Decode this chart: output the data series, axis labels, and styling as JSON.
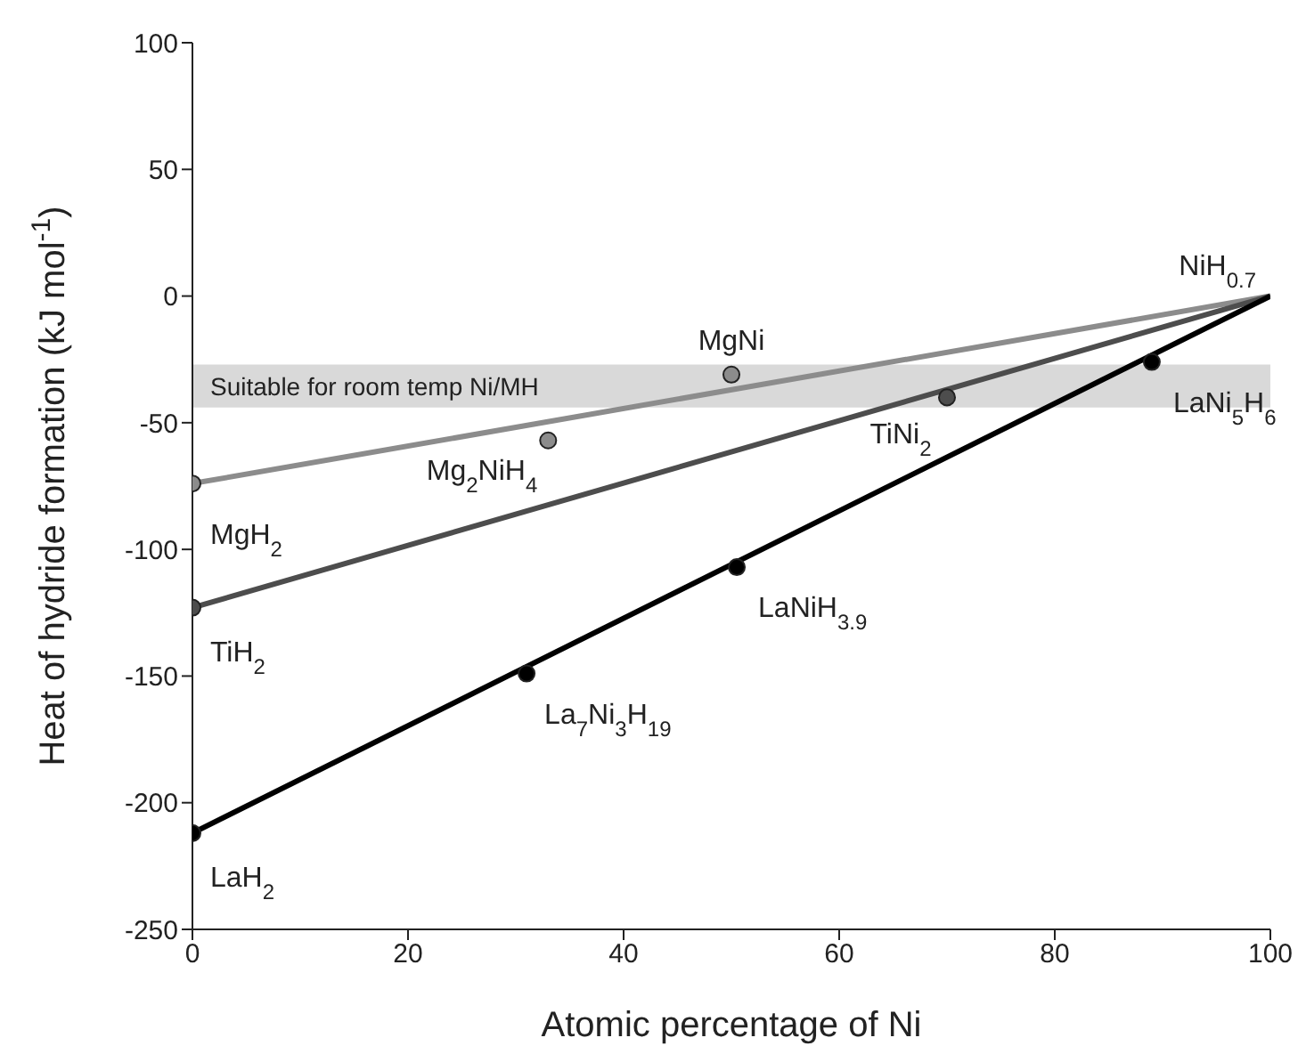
{
  "chart_data": {
    "type": "scatter",
    "xlabel": "Atomic percentage of Ni",
    "ylabel": "Heat of hydride formation (kJ mol$^{-1}$)",
    "xlim": [
      0,
      100
    ],
    "xticks": [
      0,
      20,
      40,
      60,
      80,
      100
    ],
    "ylim": [
      -250,
      100
    ],
    "yticks": [
      -250,
      -200,
      -150,
      -100,
      -50,
      0,
      50,
      100
    ],
    "grid": false,
    "line_style": "solid",
    "series": [
      {
        "type": "line",
        "marker": "none",
        "x": [
          0,
          100
        ],
        "values": [
          -74,
          0
        ],
        "color": "#8c8c8c"
      },
      {
        "type": "line",
        "marker": "none",
        "x": [
          0,
          100
        ],
        "values": [
          -123,
          0
        ],
        "color": "#4d4d4d"
      },
      {
        "type": "line",
        "marker": "none",
        "x": [
          0,
          100
        ],
        "values": [
          -212,
          0
        ],
        "color": "#000000"
      },
      {
        "marker": "circle",
        "x": [
          0,
          33,
          50
        ],
        "values": [
          -74,
          -57,
          -31
        ],
        "color": "#8c8c8c"
      },
      {
        "marker": "circle",
        "x": [
          0,
          70
        ],
        "values": [
          -123,
          -40
        ],
        "color": "#4d4d4d"
      },
      {
        "marker": "circle",
        "x": [
          0,
          31,
          50.5,
          89
        ],
        "values": [
          -212,
          -149,
          -107,
          -26
        ],
        "color": "#000000"
      }
    ],
    "bands": [
      {
        "axis": "y",
        "from": -44,
        "to": -27,
        "label": "Suitable for room temp Ni/MH",
        "color": "#d9d9d9"
      }
    ],
    "annotations": [
      {
        "text": "MgH$_{2}$",
        "x": 0,
        "y": -74
      },
      {
        "text": "Mg$_{2}$NiH$_{4}$",
        "x": 33,
        "y": -57
      },
      {
        "text": "MgNi",
        "x": 50,
        "y": -31
      },
      {
        "text": "NiH$_{0.7}$",
        "x": 100,
        "y": 0
      },
      {
        "text": "TiH$_{2}$",
        "x": 0,
        "y": -123
      },
      {
        "text": "TiNi$_{2}$",
        "x": 70,
        "y": -40
      },
      {
        "text": "LaH$_{2}$",
        "x": 0,
        "y": -212
      },
      {
        "text": "La$_{7}$Ni$_{3}$H$_{19}$",
        "x": 31,
        "y": -149
      },
      {
        "text": "LaNiH$_{3.9}$",
        "x": 50.5,
        "y": -107
      },
      {
        "text": "LaNi$_{5}$H$_{6}$",
        "x": 89,
        "y": -26
      }
    ]
  }
}
